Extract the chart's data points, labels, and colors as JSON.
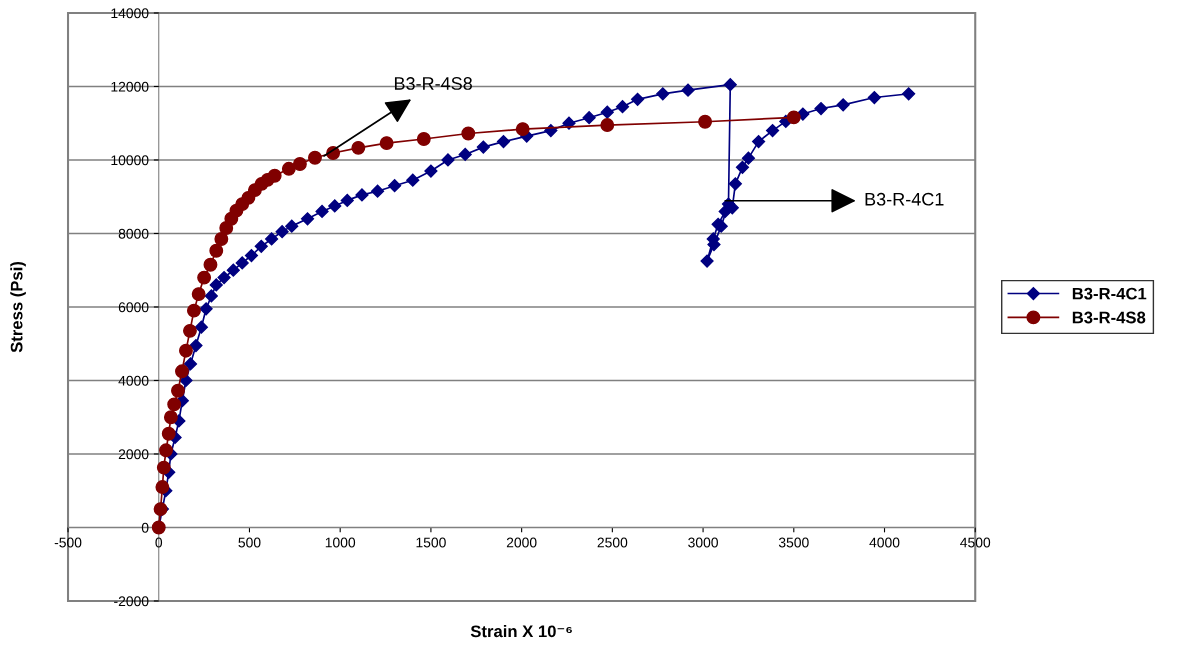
{
  "chart_data": {
    "type": "line",
    "xlabel": "Strain X 10⁻⁶",
    "ylabel": "Stress (Psi)",
    "xlim": [
      -500,
      4500
    ],
    "ylim": [
      -2000,
      14000
    ],
    "xticks": [
      -500,
      0,
      500,
      1000,
      1500,
      2000,
      2500,
      3000,
      3500,
      4000,
      4500
    ],
    "yticks": [
      -2000,
      0,
      2000,
      4000,
      6000,
      8000,
      10000,
      12000,
      14000
    ],
    "grid": "y",
    "legend": "right",
    "line_style": "solid",
    "series": [
      {
        "name": "B3-R-4C1",
        "color": "#000080",
        "marker": "diamond",
        "x": [
          0,
          20,
          39,
          55,
          67,
          90,
          111,
          130,
          150,
          175,
          205,
          235,
          261,
          290,
          317,
          360,
          411,
          460,
          511,
          565,
          622,
          680,
          733,
          820,
          900,
          970,
          1039,
          1120,
          1206,
          1300,
          1400,
          1500,
          1594,
          1689,
          1789,
          1900,
          2028,
          2161,
          2261,
          2372,
          2472,
          2556,
          2639,
          2778,
          2917,
          3150,
          3140,
          3100,
          3060,
          3022,
          3056,
          3083,
          3122,
          3161,
          3178,
          3217,
          3250,
          3306,
          3383,
          3456,
          3550,
          3650,
          3772,
          3944,
          4133
        ],
        "values": [
          0,
          500,
          1000,
          1500,
          2000,
          2450,
          2900,
          3450,
          4000,
          4450,
          4950,
          5450,
          5950,
          6300,
          6600,
          6800,
          7000,
          7200,
          7400,
          7650,
          7850,
          8050,
          8200,
          8400,
          8600,
          8750,
          8900,
          9050,
          9150,
          9300,
          9450,
          9700,
          10000,
          10150,
          10350,
          10500,
          10650,
          10800,
          11000,
          11150,
          11300,
          11450,
          11650,
          11800,
          11900,
          12050,
          8800,
          8200,
          7700,
          7250,
          7850,
          8250,
          8600,
          8700,
          9350,
          9800,
          10050,
          10500,
          10800,
          11050,
          11250,
          11400,
          11500,
          11700,
          11800
        ]
      },
      {
        "name": "B3-R-4S8",
        "color": "#800000",
        "marker": "circle",
        "x": [
          0,
          10,
          20,
          28,
          40,
          55,
          67,
          85,
          106,
          128,
          150,
          172,
          194,
          220,
          250,
          285,
          317,
          345,
          372,
          400,
          428,
          460,
          494,
          530,
          567,
          600,
          639,
          717,
          778,
          861,
          961,
          1100,
          1256,
          1461,
          1706,
          2006,
          2472,
          3011,
          3500
        ],
        "values": [
          0,
          500,
          1100,
          1630,
          2100,
          2550,
          3000,
          3350,
          3720,
          4250,
          4810,
          5350,
          5900,
          6350,
          6800,
          7150,
          7530,
          7850,
          8150,
          8400,
          8620,
          8800,
          8970,
          9180,
          9350,
          9460,
          9570,
          9760,
          9890,
          10060,
          10190,
          10330,
          10460,
          10570,
          10720,
          10840,
          10950,
          11040,
          11160
        ]
      }
    ],
    "annotations": [
      {
        "text": "B3-R-4S8",
        "x": 911,
        "y": 10110
      },
      {
        "text": "B3-R-4C1",
        "x": 3122,
        "y": 8890
      }
    ]
  }
}
